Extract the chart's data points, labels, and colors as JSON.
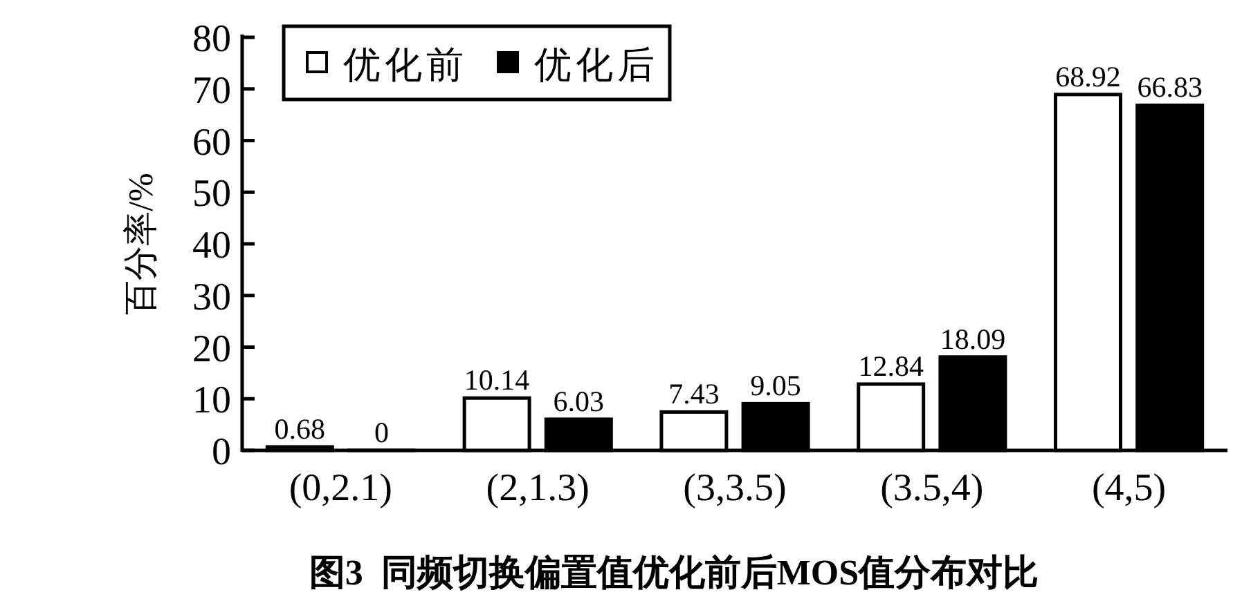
{
  "chart_data": {
    "type": "bar",
    "title": "图3  同频切换偏置值优化前后MOS值分布对比",
    "ylabel": "百分率/%",
    "categories": [
      "(0,2.1)",
      "(2,1.3)",
      "(3,3.5)",
      "(3.5,4)",
      "(4,5)"
    ],
    "series": [
      {
        "name": "优化前",
        "color": "#ffffff",
        "values": [
          0.68,
          10.14,
          7.43,
          12.84,
          68.92
        ]
      },
      {
        "name": "优化后",
        "color": "#000000",
        "values": [
          0,
          6.03,
          9.05,
          18.09,
          66.83
        ]
      }
    ],
    "ylim": [
      0,
      80
    ],
    "yticks": [
      0,
      10,
      20,
      30,
      40,
      50,
      60,
      70,
      80
    ],
    "data_labels": true,
    "legend": "top left"
  }
}
